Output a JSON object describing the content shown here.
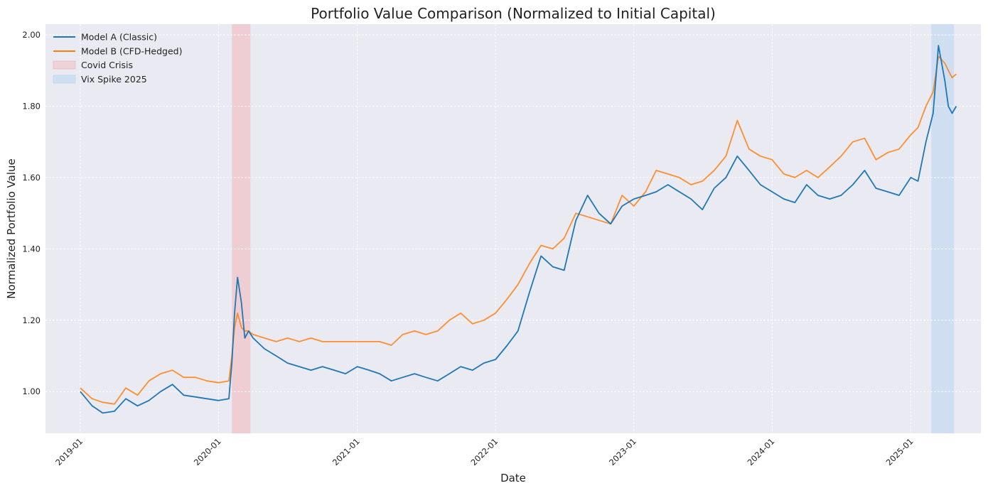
{
  "chart_data": {
    "type": "line",
    "title": "Portfolio Value Comparison (Normalized to Initial Capital)",
    "xlabel": "Date",
    "ylabel": "Normalized Portfolio Value",
    "xlim": [
      "2018-10-01",
      "2025-07-05"
    ],
    "ylim": [
      0.883,
      2.03
    ],
    "y_ticks": [
      1.0,
      1.2,
      1.4,
      1.6,
      1.8,
      2.0
    ],
    "y_tick_labels": [
      "1.00",
      "1.20",
      "1.40",
      "1.60",
      "1.80",
      "2.00"
    ],
    "x_ticks": [
      "2019-01-01",
      "2020-01-01",
      "2021-01-01",
      "2022-01-01",
      "2023-01-01",
      "2024-01-01",
      "2025-01-01"
    ],
    "x_tick_labels": [
      "2019-01",
      "2020-01",
      "2021-01",
      "2022-01",
      "2023-01",
      "2024-01",
      "2025-01"
    ],
    "grid": true,
    "legend_position": "top-left",
    "background_color": "#eaeaf2",
    "series": [
      {
        "name": "Model A (Classic)",
        "color": "#1f77b4",
        "x": [
          "2019-01-01",
          "2019-02-01",
          "2019-03-01",
          "2019-04-01",
          "2019-05-01",
          "2019-06-01",
          "2019-07-01",
          "2019-08-01",
          "2019-09-01",
          "2019-10-01",
          "2019-11-01",
          "2019-12-01",
          "2020-01-01",
          "2020-01-28",
          "2020-02-05",
          "2020-02-12",
          "2020-02-20",
          "2020-03-01",
          "2020-03-10",
          "2020-03-20",
          "2020-04-01",
          "2020-05-01",
          "2020-06-01",
          "2020-07-01",
          "2020-08-01",
          "2020-09-01",
          "2020-10-01",
          "2020-11-01",
          "2020-12-01",
          "2021-01-01",
          "2021-02-01",
          "2021-03-01",
          "2021-04-01",
          "2021-05-01",
          "2021-06-01",
          "2021-07-01",
          "2021-08-01",
          "2021-09-01",
          "2021-10-01",
          "2021-11-01",
          "2021-12-01",
          "2022-01-01",
          "2022-02-01",
          "2022-03-01",
          "2022-04-01",
          "2022-05-01",
          "2022-06-01",
          "2022-07-01",
          "2022-08-01",
          "2022-09-01",
          "2022-10-01",
          "2022-11-01",
          "2022-12-01",
          "2023-01-01",
          "2023-02-01",
          "2023-03-01",
          "2023-04-01",
          "2023-05-01",
          "2023-06-01",
          "2023-07-01",
          "2023-08-01",
          "2023-09-01",
          "2023-10-01",
          "2023-11-01",
          "2023-12-01",
          "2024-01-01",
          "2024-02-01",
          "2024-03-01",
          "2024-04-01",
          "2024-05-01",
          "2024-06-01",
          "2024-07-01",
          "2024-08-01",
          "2024-09-01",
          "2024-10-01",
          "2024-11-01",
          "2024-12-01",
          "2025-01-01",
          "2025-01-20",
          "2025-02-10",
          "2025-03-01",
          "2025-03-15",
          "2025-04-01",
          "2025-04-10",
          "2025-04-20",
          "2025-05-01"
        ],
        "y": [
          1.0,
          0.96,
          0.94,
          0.945,
          0.98,
          0.96,
          0.975,
          1.0,
          1.02,
          0.99,
          0.985,
          0.98,
          0.975,
          0.98,
          1.08,
          1.22,
          1.32,
          1.25,
          1.15,
          1.17,
          1.15,
          1.12,
          1.1,
          1.08,
          1.07,
          1.06,
          1.07,
          1.06,
          1.05,
          1.07,
          1.06,
          1.05,
          1.03,
          1.04,
          1.05,
          1.04,
          1.03,
          1.05,
          1.07,
          1.06,
          1.08,
          1.09,
          1.13,
          1.17,
          1.28,
          1.38,
          1.35,
          1.34,
          1.48,
          1.55,
          1.5,
          1.47,
          1.52,
          1.54,
          1.55,
          1.56,
          1.58,
          1.56,
          1.54,
          1.51,
          1.57,
          1.6,
          1.66,
          1.62,
          1.58,
          1.56,
          1.54,
          1.53,
          1.58,
          1.55,
          1.54,
          1.55,
          1.58,
          1.62,
          1.57,
          1.56,
          1.55,
          1.6,
          1.59,
          1.7,
          1.78,
          1.97,
          1.87,
          1.8,
          1.78,
          1.8
        ]
      },
      {
        "name": "Model B (CFD-Hedged)",
        "color": "#ff7f0e",
        "x": [
          "2019-01-01",
          "2019-02-01",
          "2019-03-01",
          "2019-04-01",
          "2019-05-01",
          "2019-06-01",
          "2019-07-01",
          "2019-08-01",
          "2019-09-01",
          "2019-10-01",
          "2019-11-01",
          "2019-12-01",
          "2020-01-01",
          "2020-01-28",
          "2020-02-05",
          "2020-02-12",
          "2020-02-20",
          "2020-03-01",
          "2020-03-10",
          "2020-03-20",
          "2020-04-01",
          "2020-05-01",
          "2020-06-01",
          "2020-07-01",
          "2020-08-01",
          "2020-09-01",
          "2020-10-01",
          "2020-11-01",
          "2020-12-01",
          "2021-01-01",
          "2021-02-01",
          "2021-03-01",
          "2021-04-01",
          "2021-05-01",
          "2021-06-01",
          "2021-07-01",
          "2021-08-01",
          "2021-09-01",
          "2021-10-01",
          "2021-11-01",
          "2021-12-01",
          "2022-01-01",
          "2022-02-01",
          "2022-03-01",
          "2022-04-01",
          "2022-05-01",
          "2022-06-01",
          "2022-07-01",
          "2022-08-01",
          "2022-09-01",
          "2022-10-01",
          "2022-11-01",
          "2022-12-01",
          "2023-01-01",
          "2023-02-01",
          "2023-03-01",
          "2023-04-01",
          "2023-05-01",
          "2023-06-01",
          "2023-07-01",
          "2023-08-01",
          "2023-09-01",
          "2023-10-01",
          "2023-11-01",
          "2023-12-01",
          "2024-01-01",
          "2024-02-01",
          "2024-03-01",
          "2024-04-01",
          "2024-05-01",
          "2024-06-01",
          "2024-07-01",
          "2024-08-01",
          "2024-09-01",
          "2024-10-01",
          "2024-11-01",
          "2024-12-01",
          "2025-01-01",
          "2025-01-20",
          "2025-02-10",
          "2025-03-01",
          "2025-03-15",
          "2025-04-01",
          "2025-04-10",
          "2025-04-20",
          "2025-05-01"
        ],
        "y": [
          1.01,
          0.98,
          0.97,
          0.965,
          1.01,
          0.99,
          1.03,
          1.05,
          1.06,
          1.04,
          1.04,
          1.03,
          1.025,
          1.03,
          1.1,
          1.18,
          1.22,
          1.18,
          1.17,
          1.17,
          1.16,
          1.15,
          1.14,
          1.15,
          1.14,
          1.15,
          1.14,
          1.14,
          1.14,
          1.14,
          1.14,
          1.14,
          1.13,
          1.16,
          1.17,
          1.16,
          1.17,
          1.2,
          1.22,
          1.19,
          1.2,
          1.22,
          1.26,
          1.3,
          1.36,
          1.41,
          1.4,
          1.43,
          1.5,
          1.49,
          1.48,
          1.47,
          1.55,
          1.52,
          1.56,
          1.62,
          1.61,
          1.6,
          1.58,
          1.59,
          1.62,
          1.66,
          1.76,
          1.68,
          1.66,
          1.65,
          1.61,
          1.6,
          1.62,
          1.6,
          1.63,
          1.66,
          1.7,
          1.71,
          1.65,
          1.67,
          1.68,
          1.72,
          1.74,
          1.8,
          1.84,
          1.94,
          1.92,
          1.9,
          1.88,
          1.89
        ]
      }
    ],
    "shaded_regions": [
      {
        "name": "Covid Crisis",
        "start": "2020-02-05",
        "end": "2020-03-25",
        "color": "#f4a6a6"
      },
      {
        "name": "Vix Spike 2025",
        "start": "2025-02-24",
        "end": "2025-04-25",
        "color": "#b3d4f0"
      }
    ]
  }
}
